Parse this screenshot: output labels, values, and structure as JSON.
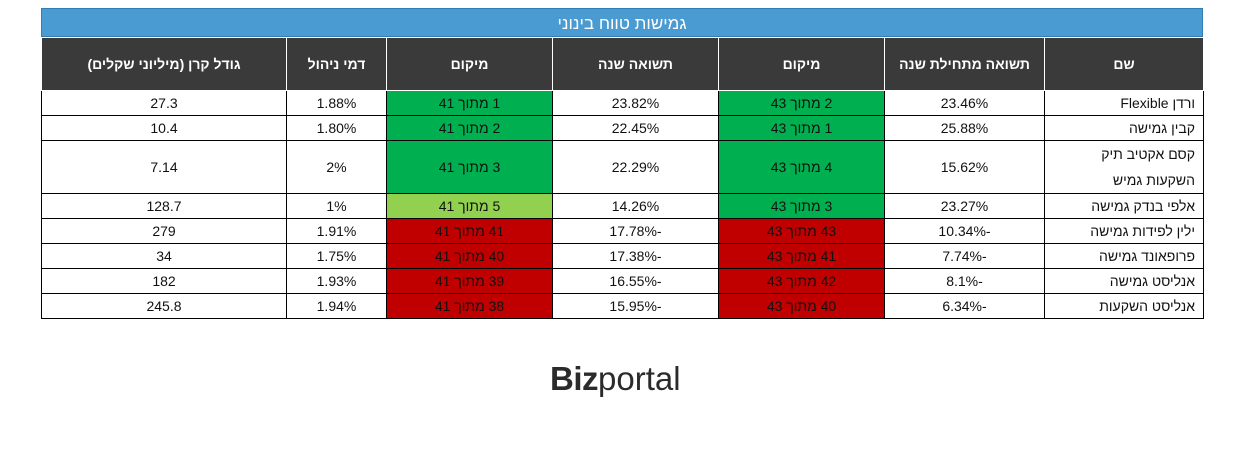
{
  "title": "גמישות טווח בינוני",
  "colors": {
    "title_bg": "#4a9bd1",
    "header_bg": "#3a3a3a",
    "green_dark": "#00b050",
    "green_light": "#92d050",
    "red": "#c00000"
  },
  "headers": [
    "שם",
    "תשואה מתחילת שנה",
    "מיקום",
    "תשואה שנה",
    "מיקום",
    "דמי ניהול",
    "גודל קרן (מיליוני שקלים)"
  ],
  "rows": [
    {
      "name": "ורדן Flexible",
      "ytd": "23.46%",
      "rank_ytd": "2 מתוך 43",
      "rank_ytd_color": "#00b050",
      "year": "23.82%",
      "rank_year": "1 מתוך 41",
      "rank_year_color": "#00b050",
      "fee": "1.88%",
      "size": "27.3"
    },
    {
      "name": "קבין גמישה",
      "ytd": "25.88%",
      "rank_ytd": "1 מתוך 43",
      "rank_ytd_color": "#00b050",
      "year": "22.45%",
      "rank_year": "2 מתוך 41",
      "rank_year_color": "#00b050",
      "fee": "1.80%",
      "size": "10.4"
    },
    {
      "name": "קסם אקטיב תיק השקעות גמיש",
      "ytd": "15.62%",
      "rank_ytd": "4 מתוך 43",
      "rank_ytd_color": "#00b050",
      "year": "22.29%",
      "rank_year": "3 מתוך 41",
      "rank_year_color": "#00b050",
      "fee": "2%",
      "size": "7.14"
    },
    {
      "name": "אלפי בנדק גמישה",
      "ytd": "23.27%",
      "rank_ytd": "3 מתוך 43",
      "rank_ytd_color": "#00b050",
      "year": "14.26%",
      "rank_year": "5 מתוך 41",
      "rank_year_color": "#92d050",
      "fee": "1%",
      "size": "128.7"
    },
    {
      "name": "ילין לפידות גמישה",
      "ytd": "-10.34%",
      "rank_ytd": "43 מתוך 43",
      "rank_ytd_color": "#c00000",
      "year": "-17.78%",
      "rank_year": "41 מתוך 41",
      "rank_year_color": "#c00000",
      "fee": "1.91%",
      "size": "279"
    },
    {
      "name": "פרופאונד גמישה",
      "ytd": "-7.74%",
      "rank_ytd": "41 מתוך 43",
      "rank_ytd_color": "#c00000",
      "year": "-17.38%",
      "rank_year": "40 מתוך 41",
      "rank_year_color": "#c00000",
      "fee": "1.75%",
      "size": "34"
    },
    {
      "name": "אנליסט גמישה",
      "ytd": "-8.1%",
      "rank_ytd": "42 מתוך 43",
      "rank_ytd_color": "#c00000",
      "year": "-16.55%",
      "rank_year": "39 מתוך 41",
      "rank_year_color": "#c00000",
      "fee": "1.93%",
      "size": "182"
    },
    {
      "name": "אנליסט השקעות",
      "ytd": "-6.34%",
      "rank_ytd": "40 מתוך 43",
      "rank_ytd_color": "#c00000",
      "year": "-15.95%",
      "rank_year": "38 מתוך 41",
      "rank_year_color": "#c00000",
      "fee": "1.94%",
      "size": "245.8"
    }
  ],
  "logo": {
    "bold": "Biz",
    "light": "portal"
  }
}
